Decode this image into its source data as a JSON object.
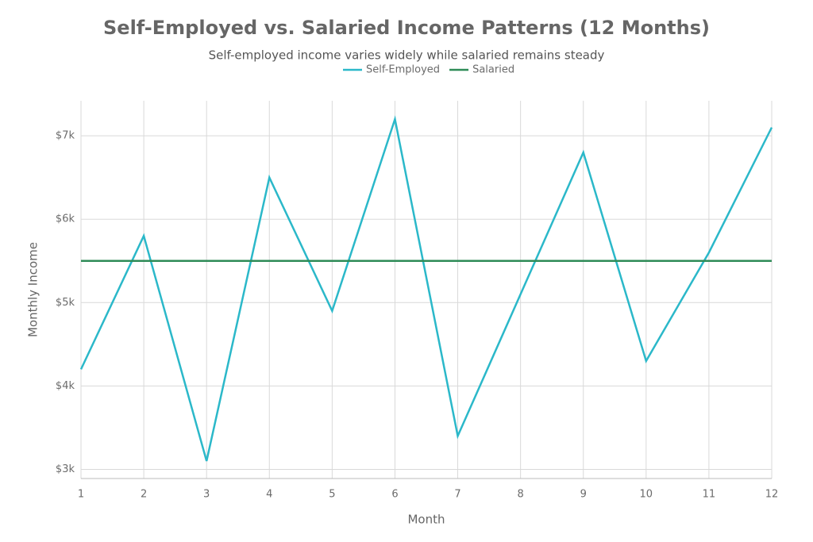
{
  "chart_data": {
    "type": "line",
    "title": "Self-Employed vs. Salaried Income Patterns (12 Months)",
    "subtitle": "Self-employed income varies widely while salaried remains steady",
    "x_label": "Month",
    "y_label": "Monthly Income",
    "x": [
      1,
      2,
      3,
      4,
      5,
      6,
      7,
      8,
      9,
      10,
      11,
      12
    ],
    "series": [
      {
        "name": "Self-Employed",
        "color": "#2bb8c9",
        "values": [
          4200,
          5800,
          3100,
          6500,
          4900,
          7200,
          3400,
          5100,
          6800,
          4300,
          5600,
          7100
        ]
      },
      {
        "name": "Salaried",
        "color": "#2e8b57",
        "values": [
          5500,
          5500,
          5500,
          5500,
          5500,
          5500,
          5500,
          5500,
          5500,
          5500,
          5500,
          5500
        ]
      }
    ],
    "xlim": [
      1,
      12
    ],
    "xticks": [
      1,
      2,
      3,
      4,
      5,
      6,
      7,
      8,
      9,
      10,
      11,
      12
    ],
    "ylim": [
      2890,
      7420
    ],
    "yticks": [
      {
        "value": 3000,
        "label": "$3k"
      },
      {
        "value": 4000,
        "label": "$4k"
      },
      {
        "value": 5000,
        "label": "$5k"
      },
      {
        "value": 6000,
        "label": "$6k"
      },
      {
        "value": 7000,
        "label": "$7k"
      }
    ],
    "grid": true,
    "legend": "top"
  }
}
